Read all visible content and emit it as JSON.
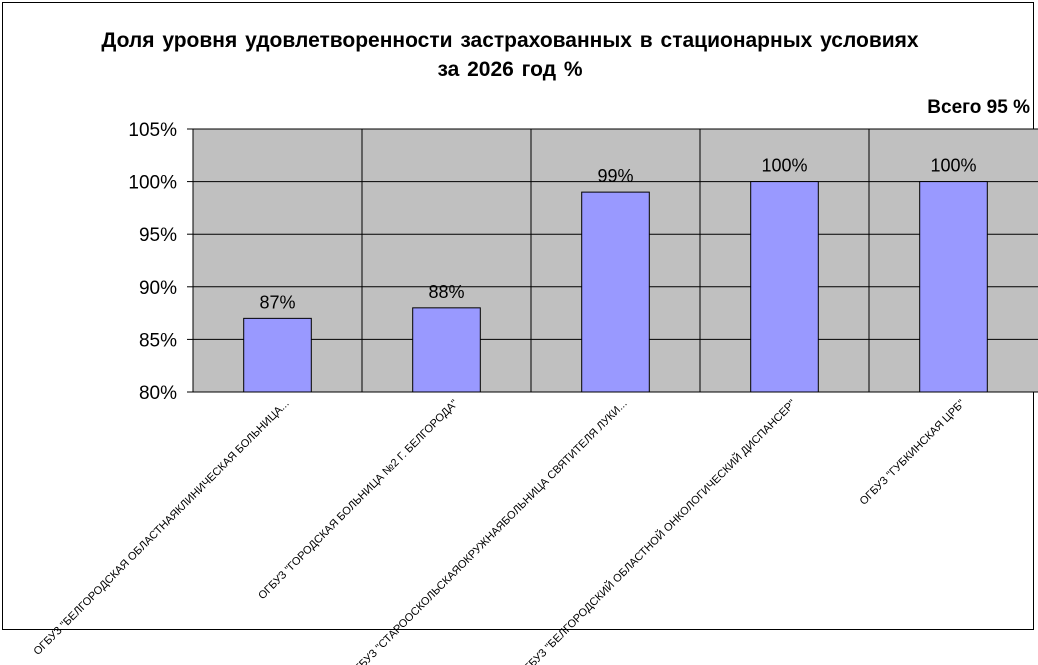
{
  "chart_data": {
    "type": "bar",
    "title": "Доля уровня удовлетворенности застрахованных в стационарных условиях за 2026 год %",
    "annotation": "Всего 95 %",
    "categories": [
      "ОГБУЗ \"БЕЛГОРОДСКАЯ ОБЛАСТНАЯКЛИНИЧЕСКАЯ БОЛЬНИЦА...",
      "ОГБУЗ \"ГОРОДСКАЯ БОЛЬНИЦА №2 Г. БЕЛГОРОДА\"",
      "ОГБУЗ \"СТАРООСКОЛЬСКАЯОКРУЖНАЯБОЛЬНИЦА СВЯТИТЕЛЯ ЛУКИ...",
      "ОГБУЗ \"БЕЛГОРОДСКИЙ ОБЛАСТНОЙ ОНКОЛОГИЧЕСКИЙ ДИСПАНСЕР\"",
      "ОГБУЗ \"ГУБКИНСКАЯ ЦРБ\""
    ],
    "values": [
      87,
      88,
      99,
      100,
      100
    ],
    "data_labels": [
      "87%",
      "88%",
      "99%",
      "100%",
      "100%"
    ],
    "y_ticks": [
      "80%",
      "85%",
      "90%",
      "95%",
      "100%",
      "105%"
    ],
    "ylim": [
      80,
      105
    ],
    "grid": true,
    "bar_color": "#9999ff",
    "plot_background": "#c0c0c0"
  }
}
